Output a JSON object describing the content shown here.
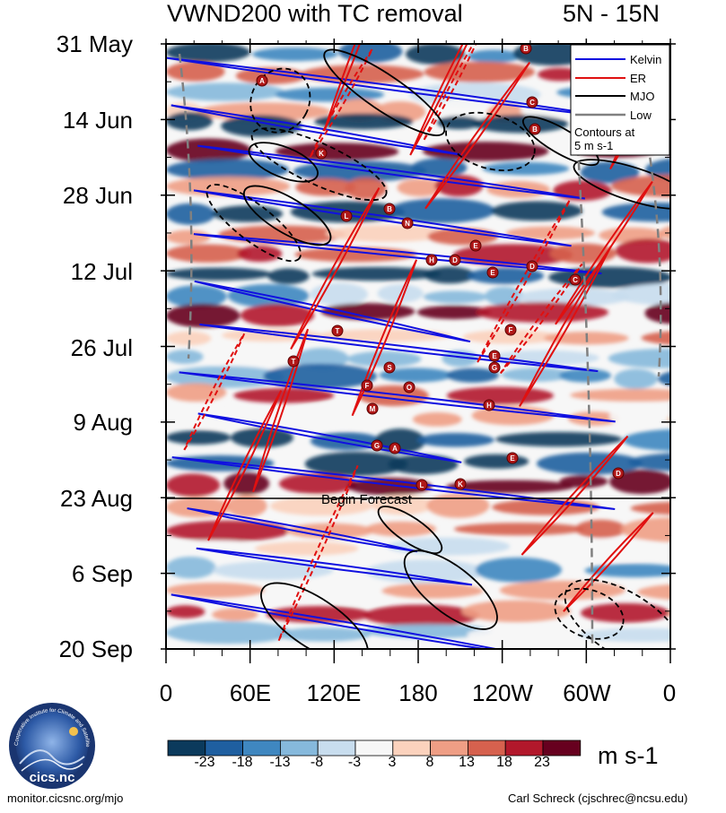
{
  "chart_data": {
    "type": "heatmap",
    "title": "VWND200 with TC removal",
    "latitude_band": "5N - 15N",
    "variable": "200 hPa meridional wind, TC removed",
    "y_axis": {
      "label": "",
      "tick_labels": [
        "31 May",
        "14 Jun",
        "28 Jun",
        "12 Jul",
        "26 Jul",
        "9 Aug",
        "23 Aug",
        "6 Sep",
        "20 Sep"
      ],
      "direction": "time increases downward"
    },
    "x_axis": {
      "label": "",
      "tick_labels": [
        "0",
        "60E",
        "120E",
        "180",
        "120W",
        "60W",
        "0"
      ],
      "range_deg_east": [
        0,
        360
      ]
    },
    "colorbar": {
      "units": "m s-1",
      "tick_labels": [
        "-23",
        "-18",
        "-13",
        "-8",
        "-3",
        "3",
        "8",
        "13",
        "18",
        "23"
      ],
      "colors": [
        "#0b3a5c",
        "#1f5fa0",
        "#3f87c0",
        "#86b9dc",
        "#c8ddee",
        "#f7f7f7",
        "#fbd2bd",
        "#ef9e85",
        "#d6614e",
        "#b2182b",
        "#67001f"
      ]
    },
    "legend": {
      "items": [
        {
          "name": "Kelvin",
          "color": "#1010e0"
        },
        {
          "name": "ER",
          "color": "#e01010"
        },
        {
          "name": "MJO",
          "color": "#000000"
        },
        {
          "name": "Low",
          "color": "#808080"
        }
      ],
      "note_line1": "Contours at",
      "note_line2": "5 m s-1"
    },
    "forecast_marker": {
      "date": "23 Aug",
      "label": "Begin Forecast"
    },
    "storm_labels": [
      "B",
      "A",
      "C",
      "B",
      "K",
      "L",
      "B",
      "N",
      "E",
      "H",
      "D",
      "D",
      "E",
      "C",
      "T",
      "F",
      "T",
      "E",
      "S",
      "G",
      "F",
      "O",
      "H",
      "M",
      "G",
      "A",
      "E",
      "D",
      "L",
      "K"
    ]
  },
  "footer": {
    "left": "monitor.cicsnc.org/mjo",
    "right": "Carl Schreck (cjschrec@ncsu.edu)"
  },
  "logo": {
    "text": "cics.nc",
    "ring_text": "Cooperative Institute for Climate and Satellites"
  }
}
